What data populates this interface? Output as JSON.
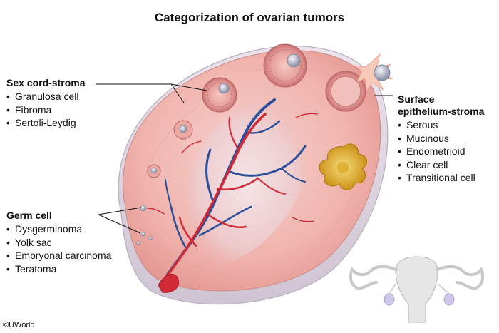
{
  "title": "Categorization of ovarian tumors",
  "groups": {
    "sex_cord_stroma": {
      "heading": "Sex cord-stroma",
      "items": [
        "Granulosa cell",
        "Fibroma",
        "Sertoli-Leydig"
      ]
    },
    "germ_cell": {
      "heading": "Germ cell",
      "items": [
        "Dysgerminoma",
        "Yolk sac",
        "Embryonal carcinoma",
        "Teratoma"
      ]
    },
    "surface_epithelium_stroma": {
      "heading_line1": "Surface",
      "heading_line2": "epithelium-stroma",
      "items": [
        "Serous",
        "Mucinous",
        "Endometrioid",
        "Clear cell",
        "Transitional cell"
      ]
    }
  },
  "copyright": "©UWorld",
  "colors": {
    "ovary_surface": "#f2b8b2",
    "ovary_rim": "#e8dde8",
    "artery": "#cf2a36",
    "vein": "#2a4f9a",
    "corpus_albicans": "#e3b52a",
    "uterus": "#e6e6e6"
  }
}
